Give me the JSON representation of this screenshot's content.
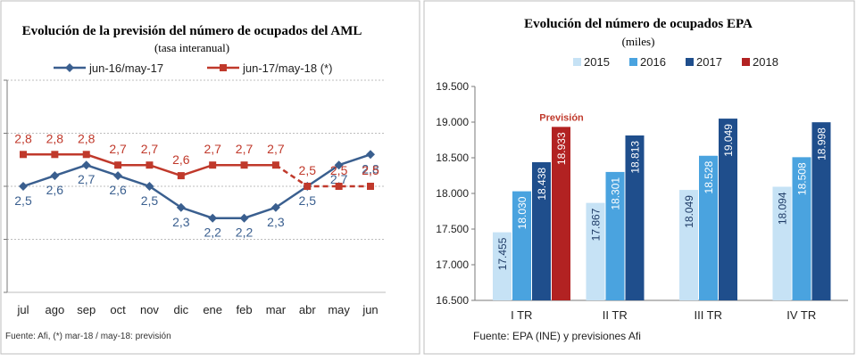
{
  "chart_data": [
    {
      "type": "line",
      "title": "Evolución de la previsión del número de ocupados del AML",
      "subtitle": "(tasa interanual)",
      "categories": [
        "jul",
        "ago",
        "sep",
        "oct",
        "nov",
        "dic",
        "ene",
        "feb",
        "mar",
        "abr",
        "may",
        "jun"
      ],
      "ylim": [
        1.5,
        3.5
      ],
      "grid": true,
      "legend_position": "top",
      "series": [
        {
          "name": "jun-16/may-17",
          "color": "#3a5f8f",
          "marker": "diamond",
          "values": [
            2.5,
            2.6,
            2.7,
            2.6,
            2.5,
            2.3,
            2.2,
            2.2,
            2.3,
            2.5,
            2.7,
            2.8
          ],
          "labels": [
            "2,5",
            "2,6",
            "2,7",
            "2,6",
            "2,5",
            "2,3",
            "2,2",
            "2,2",
            "2,3",
            "2,5",
            "2,7",
            "2,8"
          ]
        },
        {
          "name": "jun-17/may-18 (*)",
          "color": "#c0392b",
          "marker": "square",
          "values": [
            2.8,
            2.8,
            2.8,
            2.7,
            2.7,
            2.6,
            2.7,
            2.7,
            2.7,
            2.5,
            2.5,
            2.5
          ],
          "labels": [
            "2,8",
            "2,8",
            "2,8",
            "2,7",
            "2,7",
            "2,6",
            "2,7",
            "2,7",
            "2,7",
            "2,5",
            "2,5",
            "2,5"
          ],
          "forecast_from_index": 9
        }
      ],
      "source": "Fuente: Afi, (*) mar-18 / may-18: previsión"
    },
    {
      "type": "bar",
      "title": "Evolución del número de ocupados EPA",
      "subtitle": "(miles)",
      "categories": [
        "I TR",
        "II TR",
        "III TR",
        "IV TR"
      ],
      "ylim": [
        16500,
        19500
      ],
      "y_ticks": [
        "16.500",
        "17.000",
        "17.500",
        "18.000",
        "18.500",
        "19.000",
        "19.500"
      ],
      "legend_position": "top",
      "series": [
        {
          "name": "2015",
          "color": "#c6e2f5",
          "values": [
            17455,
            17867,
            18049,
            18094
          ],
          "labels": [
            "17.455",
            "17.867",
            "18.049",
            "18.094"
          ]
        },
        {
          "name": "2016",
          "color": "#4aa3df",
          "values": [
            18030,
            18301,
            18528,
            18508
          ],
          "labels": [
            "18.030",
            "18.301",
            "18.528",
            "18.508"
          ]
        },
        {
          "name": "2017",
          "color": "#1f4e8c",
          "values": [
            18438,
            18813,
            19049,
            18998
          ],
          "labels": [
            "18.438",
            "18.813",
            "19.049",
            "18.998"
          ]
        },
        {
          "name": "2018",
          "color": "#b22222",
          "values": [
            18933,
            null,
            null,
            null
          ],
          "labels": [
            "18.933",
            "",
            "",
            ""
          ]
        }
      ],
      "annotation": "Previsión",
      "source": "Fuente: EPA (INE) y previsiones Afi"
    }
  ]
}
